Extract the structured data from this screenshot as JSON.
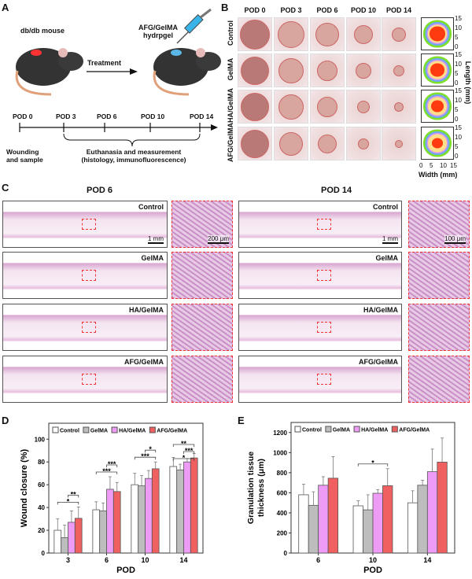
{
  "panels": {
    "a": "A",
    "b": "B",
    "c": "C",
    "d": "D",
    "e": "E"
  },
  "panel_a": {
    "mouse_label": "db/db mouse",
    "hydrogel_label_1": "AFG/GelMA",
    "hydrogel_label_2": "hydrpgel",
    "treatment": "Treatment",
    "timeline": [
      "POD 0",
      "POD 3",
      "POD 6",
      "POD 10",
      "POD 14"
    ],
    "wounding_1": "Wounding",
    "wounding_2": "and sample",
    "euthanasia_1": "Euthanasia and measurement",
    "euthanasia_2": "(histology, immunofluorescence)"
  },
  "panel_b": {
    "columns": [
      "POD 0",
      "POD 3",
      "POD 6",
      "POD 10",
      "POD 14"
    ],
    "rows": [
      "Control",
      "GelMA",
      "HA/GelMA",
      "AFG/GelMA"
    ],
    "y_ticks": [
      "15",
      "10",
      "5",
      "0"
    ],
    "x_ticks": [
      "0",
      "5",
      "10",
      "15"
    ],
    "ylabel": "Length (mm)",
    "xlabel": "Width (mm)",
    "contour_colors": [
      "#7ee02a",
      "#6fa8f0",
      "#d79af0",
      "#ffe08a",
      "#ff3b0f"
    ]
  },
  "panel_c": {
    "left_title": "POD 6",
    "right_title": "POD 14",
    "groups": [
      "Control",
      "GelMA",
      "HA/GelMA",
      "AFG/GelMA"
    ],
    "scale_left": "1 mm",
    "scale_left_inset": "200 μm",
    "scale_right": "1 mm",
    "scale_right_inset": "100 μm"
  },
  "chart_data": [
    {
      "type": "bar",
      "ylabel": "Wound closure (%)",
      "xlabel": "POD",
      "categories": [
        "3",
        "6",
        "10",
        "14"
      ],
      "ylim": [
        0,
        114
      ],
      "yticks": [
        0,
        20,
        40,
        60,
        80,
        100
      ],
      "legend": "top",
      "series": [
        {
          "name": "Control",
          "color": "#ffffff",
          "values": [
            20,
            38,
            60,
            76
          ],
          "error": [
            10,
            7,
            10,
            8
          ]
        },
        {
          "name": "GelMA",
          "color": "#bdbdbd",
          "values": [
            13.5,
            37,
            59,
            73
          ],
          "error": [
            11,
            7,
            9,
            5
          ]
        },
        {
          "name": "HA/GelMA",
          "color": "#ee9bf5",
          "values": [
            27,
            56,
            65.5,
            80
          ],
          "error": [
            10,
            11,
            7,
            3
          ]
        },
        {
          "name": "AFG/GelMA",
          "color": "#f06060",
          "values": [
            30.5,
            54,
            74,
            83.5
          ],
          "error": [
            10,
            8,
            6,
            4
          ]
        }
      ],
      "significance": [
        {
          "category": "3",
          "label": "*"
        },
        {
          "category": "3",
          "label": "**"
        },
        {
          "category": "6",
          "label": "***"
        },
        {
          "category": "6",
          "label": "***"
        },
        {
          "category": "10",
          "label": "***"
        },
        {
          "category": "10",
          "label": "*"
        },
        {
          "category": "14",
          "label": "*"
        },
        {
          "category": "14",
          "label": "***"
        },
        {
          "category": "14",
          "label": "**"
        }
      ]
    },
    {
      "type": "bar",
      "ylabel": "Granulation tissue thickness (μm)",
      "ylabel_1": "Granulation tissue",
      "ylabel_2": "thickness (μm)",
      "xlabel": "POD",
      "categories": [
        "6",
        "10",
        "14"
      ],
      "ylim": [
        0,
        1300
      ],
      "yticks": [
        0,
        200,
        400,
        600,
        800,
        1000,
        1200
      ],
      "legend": "top",
      "series": [
        {
          "name": "Control",
          "color": "#ffffff",
          "values": [
            580,
            470,
            500
          ],
          "error": [
            105,
            50,
            120
          ]
        },
        {
          "name": "GelMA",
          "color": "#bdbdbd",
          "values": [
            475,
            430,
            675
          ],
          "error": [
            135,
            150,
            50
          ]
        },
        {
          "name": "HA/GelMA",
          "color": "#ee9bf5",
          "values": [
            675,
            595,
            810
          ],
          "error": [
            85,
            35,
            225
          ]
        },
        {
          "name": "AFG/GelMA",
          "color": "#f06060",
          "values": [
            745,
            670,
            905
          ],
          "error": [
            215,
            170,
            240
          ]
        }
      ],
      "significance": [
        {
          "category": "10",
          "label": "*"
        }
      ]
    }
  ]
}
